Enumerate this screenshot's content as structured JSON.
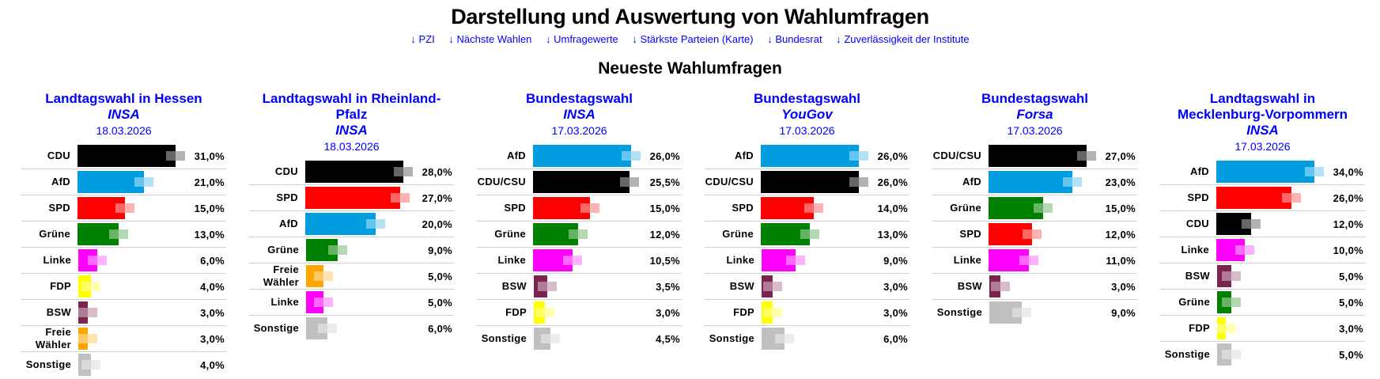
{
  "header": {
    "title": "Darstellung und Auswertung von Wahlumfragen",
    "subtitle": "Neueste Wahlumfragen",
    "links": [
      "↓ PZI",
      "↓ Nächste Wahlen",
      "↓ Umfragewerte",
      "↓ Stärkste Parteien (Karte)",
      "↓ Bundesrat",
      "↓ Zuverlässigkeit der Institute"
    ]
  },
  "colors": {
    "CDU": "#000000",
    "CDU/CSU": "#000000",
    "AfD": "#009ee0",
    "SPD": "#ff0000",
    "Grüne": "#008000",
    "Linke": "#ff00ff",
    "FDP": "#ffff00",
    "BSW": "#7b2450",
    "Freie Wähler": "#ffa500",
    "Sonstige": "#c0c0c0"
  },
  "chart_data": [
    {
      "type": "bar",
      "title": "Landtagswahl in Hessen",
      "institute": "INSA",
      "date": "18.03.2026",
      "categories": [
        "CDU",
        "AfD",
        "SPD",
        "Grüne",
        "Linke",
        "FDP",
        "BSW",
        "Freie Wähler",
        "Sonstige"
      ],
      "values": [
        31,
        21,
        15,
        13,
        6,
        4,
        3,
        3,
        4
      ],
      "labels": [
        "31,0%",
        "21,0%",
        "15,0%",
        "13,0%",
        "6,0%",
        "4,0%",
        "3,0%",
        "3,0%",
        "4,0%"
      ]
    },
    {
      "type": "bar",
      "title": "Landtagswahl in Rheinland-Pfalz",
      "institute": "INSA",
      "date": "18.03.2026",
      "categories": [
        "CDU",
        "SPD",
        "AfD",
        "Grüne",
        "Freie Wähler",
        "Linke",
        "Sonstige"
      ],
      "values": [
        28,
        27,
        20,
        9,
        5,
        5,
        6
      ],
      "labels": [
        "28,0%",
        "27,0%",
        "20,0%",
        "9,0%",
        "5,0%",
        "5,0%",
        "6,0%"
      ]
    },
    {
      "type": "bar",
      "title": "Bundestagswahl",
      "institute": "INSA",
      "date": "17.03.2026",
      "categories": [
        "AfD",
        "CDU/CSU",
        "SPD",
        "Grüne",
        "Linke",
        "BSW",
        "FDP",
        "Sonstige"
      ],
      "values": [
        26,
        25.5,
        15,
        12,
        10.5,
        3.5,
        3,
        4.5
      ],
      "labels": [
        "26,0%",
        "25,5%",
        "15,0%",
        "12,0%",
        "10,5%",
        "3,5%",
        "3,0%",
        "4,5%"
      ]
    },
    {
      "type": "bar",
      "title": "Bundestagswahl",
      "institute": "YouGov",
      "date": "17.03.2026",
      "categories": [
        "AfD",
        "CDU/CSU",
        "SPD",
        "Grüne",
        "Linke",
        "BSW",
        "FDP",
        "Sonstige"
      ],
      "values": [
        26,
        26,
        14,
        13,
        9,
        3,
        3,
        6
      ],
      "labels": [
        "26,0%",
        "26,0%",
        "14,0%",
        "13,0%",
        "9,0%",
        "3,0%",
        "3,0%",
        "6,0%"
      ]
    },
    {
      "type": "bar",
      "title": "Bundestagswahl",
      "institute": "Forsa",
      "date": "17.03.2026",
      "categories": [
        "CDU/CSU",
        "AfD",
        "Grüne",
        "SPD",
        "Linke",
        "BSW",
        "Sonstige"
      ],
      "values": [
        27,
        23,
        15,
        12,
        11,
        3,
        9
      ],
      "labels": [
        "27,0%",
        "23,0%",
        "15,0%",
        "12,0%",
        "11,0%",
        "3,0%",
        "9,0%"
      ]
    },
    {
      "type": "bar",
      "title": "Landtagswahl in Mecklenburg-Vorpommern",
      "institute": "INSA",
      "date": "17.03.2026",
      "categories": [
        "AfD",
        "SPD",
        "CDU",
        "Linke",
        "BSW",
        "Grüne",
        "FDP",
        "Sonstige"
      ],
      "values": [
        34,
        26,
        12,
        10,
        5,
        5,
        3,
        5
      ],
      "labels": [
        "34,0%",
        "26,0%",
        "12,0%",
        "10,0%",
        "5,0%",
        "5,0%",
        "3,0%",
        "5,0%"
      ]
    }
  ]
}
